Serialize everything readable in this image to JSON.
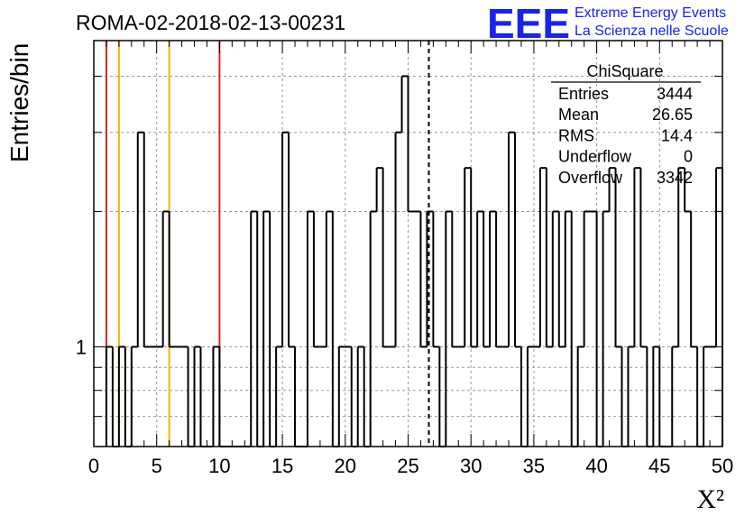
{
  "chart_data": {
    "type": "histogram",
    "title": "ROMA-02-2018-02-13-00231",
    "xlabel": "X²",
    "ylabel": "Entries/bin",
    "xlim": [
      0,
      50
    ],
    "ylim": [
      0.6,
      4.8
    ],
    "yscale": "log",
    "x_ticks": [
      0,
      5,
      10,
      15,
      20,
      25,
      30,
      35,
      40,
      45,
      50
    ],
    "y_tick_labels": [
      {
        "value": 1,
        "label": "1"
      }
    ],
    "grid": true,
    "bin_width": 0.5,
    "bins": [
      [
        1.0,
        1
      ],
      [
        1.5,
        0
      ],
      [
        2.0,
        1
      ],
      [
        2.5,
        0
      ],
      [
        3.0,
        1
      ],
      [
        3.5,
        3
      ],
      [
        4.0,
        1
      ],
      [
        4.5,
        1
      ],
      [
        5.0,
        1
      ],
      [
        5.5,
        2
      ],
      [
        6.0,
        1
      ],
      [
        6.5,
        1
      ],
      [
        7.0,
        1
      ],
      [
        7.5,
        0
      ],
      [
        8.0,
        1
      ],
      [
        8.5,
        0
      ],
      [
        9.0,
        0
      ],
      [
        9.5,
        1
      ],
      [
        10.0,
        0
      ],
      [
        10.5,
        0
      ],
      [
        11.0,
        0
      ],
      [
        11.5,
        0
      ],
      [
        12.0,
        0
      ],
      [
        12.5,
        2
      ],
      [
        13.0,
        0
      ],
      [
        13.5,
        2
      ],
      [
        14.0,
        0
      ],
      [
        14.5,
        1
      ],
      [
        15.0,
        3
      ],
      [
        15.5,
        1
      ],
      [
        16.0,
        0
      ],
      [
        16.5,
        0
      ],
      [
        17.0,
        2
      ],
      [
        17.5,
        1
      ],
      [
        18.0,
        1
      ],
      [
        18.5,
        2
      ],
      [
        19.0,
        0
      ],
      [
        19.5,
        1
      ],
      [
        20.0,
        1
      ],
      [
        20.5,
        0
      ],
      [
        21.0,
        1
      ],
      [
        21.5,
        0
      ],
      [
        22.0,
        2
      ],
      [
        22.5,
        2.5
      ],
      [
        23.0,
        1
      ],
      [
        23.5,
        1
      ],
      [
        24.0,
        3
      ],
      [
        24.5,
        4
      ],
      [
        25.0,
        2
      ],
      [
        25.5,
        2
      ],
      [
        26.0,
        1
      ],
      [
        26.5,
        2
      ],
      [
        27.0,
        1
      ],
      [
        27.5,
        0
      ],
      [
        28.0,
        2
      ],
      [
        28.5,
        1
      ],
      [
        29.0,
        1
      ],
      [
        29.5,
        2.5
      ],
      [
        30.0,
        1
      ],
      [
        30.5,
        2
      ],
      [
        31.0,
        1
      ],
      [
        31.5,
        2
      ],
      [
        32.0,
        1
      ],
      [
        32.5,
        1
      ],
      [
        33.0,
        3
      ],
      [
        33.5,
        1
      ],
      [
        34.0,
        0
      ],
      [
        34.5,
        1
      ],
      [
        35.0,
        1
      ],
      [
        35.5,
        2.5
      ],
      [
        36.0,
        1
      ],
      [
        36.5,
        2
      ],
      [
        37.0,
        1
      ],
      [
        37.5,
        2
      ],
      [
        38.0,
        0
      ],
      [
        38.5,
        1
      ],
      [
        39.0,
        2
      ],
      [
        39.5,
        2
      ],
      [
        40.0,
        0
      ],
      [
        40.5,
        2
      ],
      [
        41.0,
        2.5
      ],
      [
        41.5,
        1
      ],
      [
        42.0,
        0
      ],
      [
        42.5,
        1
      ],
      [
        43.0,
        2.5
      ],
      [
        43.5,
        1
      ],
      [
        44.0,
        0
      ],
      [
        44.5,
        1
      ],
      [
        45.0,
        0
      ],
      [
        45.5,
        0
      ],
      [
        46.0,
        1
      ],
      [
        46.5,
        2.5
      ],
      [
        47.0,
        2
      ],
      [
        47.5,
        1
      ],
      [
        48.0,
        0
      ],
      [
        48.5,
        1
      ],
      [
        49.0,
        1
      ],
      [
        49.5,
        2.5
      ]
    ],
    "vertical_lines": [
      {
        "x": 1,
        "color": "#d62728",
        "style": "solid"
      },
      {
        "x": 2,
        "color": "#f2b600",
        "style": "solid"
      },
      {
        "x": 6,
        "color": "#f2b600",
        "style": "solid"
      },
      {
        "x": 10,
        "color": "#d62728",
        "style": "solid"
      },
      {
        "x": 26.65,
        "color": "#000000",
        "style": "dashed"
      }
    ],
    "stats": {
      "title": "ChiSquare",
      "rows": [
        {
          "label": "Entries",
          "value": "3444"
        },
        {
          "label": "Mean",
          "value": "26.65"
        },
        {
          "label": "RMS",
          "value": "14.4"
        },
        {
          "label": "Underflow",
          "value": "0"
        },
        {
          "label": "Overflow",
          "value": "3342"
        }
      ]
    }
  },
  "logo": {
    "mark": "EEE",
    "line1": "Extreme Energy Events",
    "line2": "La Scienza nelle Scuole",
    "color": "#1a23e8"
  }
}
